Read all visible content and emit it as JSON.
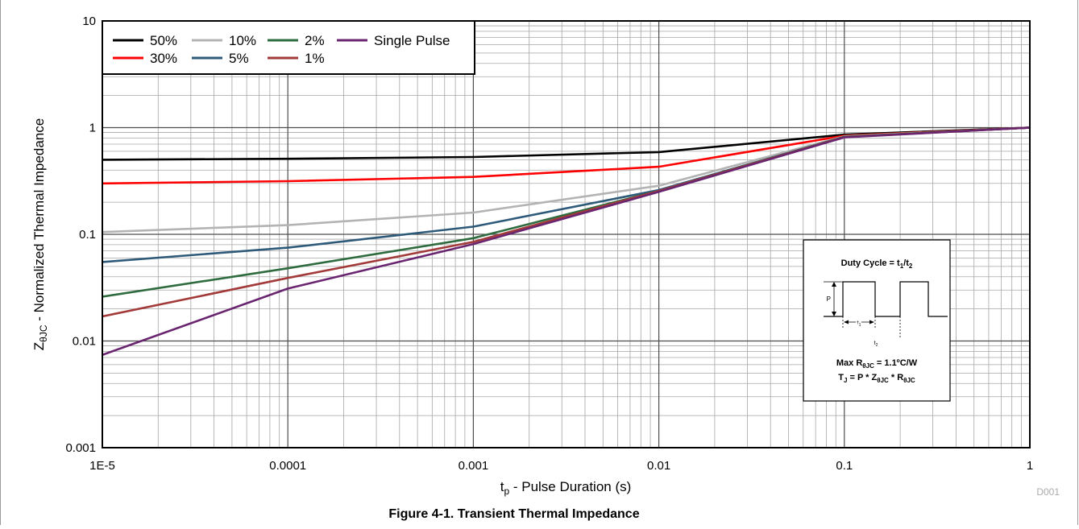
{
  "figure": {
    "caption": "Figure 4-1. Transient Thermal Impedance",
    "code": "D001"
  },
  "chart_data": {
    "type": "line",
    "x_scale": "log",
    "y_scale": "log",
    "xlim": [
      1e-05,
      1
    ],
    "ylim": [
      0.001,
      10
    ],
    "grid": true,
    "legend_position": "top-left",
    "xlabel_main": "t",
    "xlabel_sub": "p",
    "xlabel_rest": " - Pulse Duration (s)",
    "ylabel_main": "Z",
    "ylabel_sub": "θJC",
    "ylabel_rest": " - Normalized Thermal Impedance",
    "x_ticks": [
      {
        "value": 1e-05,
        "label": "1E-5"
      },
      {
        "value": 0.0001,
        "label": "0.0001"
      },
      {
        "value": 0.001,
        "label": "0.001"
      },
      {
        "value": 0.01,
        "label": "0.01"
      },
      {
        "value": 0.1,
        "label": "0.1"
      },
      {
        "value": 1,
        "label": "1"
      }
    ],
    "y_ticks": [
      {
        "value": 10,
        "label": "10"
      },
      {
        "value": 1,
        "label": "1"
      },
      {
        "value": 0.1,
        "label": "0.1"
      },
      {
        "value": 0.01,
        "label": "0.01"
      },
      {
        "value": 0.001,
        "label": "0.001"
      }
    ],
    "series": [
      {
        "name": "50%",
        "color": "#000000",
        "x": [
          1e-05,
          0.0001,
          0.001,
          0.01,
          0.1,
          1
        ],
        "y": [
          0.5,
          0.51,
          0.53,
          0.59,
          0.86,
          1.0
        ]
      },
      {
        "name": "30%",
        "color": "#ff0000",
        "x": [
          1e-05,
          0.0001,
          0.001,
          0.01,
          0.1,
          1
        ],
        "y": [
          0.3,
          0.315,
          0.345,
          0.43,
          0.84,
          1.0
        ]
      },
      {
        "name": "10%",
        "color": "#b3b3b3",
        "x": [
          1e-05,
          0.0001,
          0.001,
          0.01,
          0.1,
          1
        ],
        "y": [
          0.105,
          0.122,
          0.16,
          0.285,
          0.83,
          1.0
        ]
      },
      {
        "name": "5%",
        "color": "#2e5a7a",
        "x": [
          1e-05,
          0.0001,
          0.001,
          0.01,
          0.1,
          1
        ],
        "y": [
          0.055,
          0.075,
          0.118,
          0.26,
          0.82,
          1.0
        ]
      },
      {
        "name": "2%",
        "color": "#2e6b3e",
        "x": [
          1e-05,
          0.0001,
          0.001,
          0.01,
          0.1,
          1
        ],
        "y": [
          0.026,
          0.048,
          0.092,
          0.255,
          0.82,
          1.0
        ]
      },
      {
        "name": "1%",
        "color": "#a33a3a",
        "x": [
          1e-05,
          0.0001,
          0.001,
          0.01,
          0.1,
          1
        ],
        "y": [
          0.017,
          0.039,
          0.085,
          0.255,
          0.815,
          1.0
        ]
      },
      {
        "name": "Single Pulse",
        "color": "#6a2570",
        "x": [
          1e-05,
          0.0001,
          0.001,
          0.01,
          0.1,
          1
        ],
        "y": [
          0.0074,
          0.031,
          0.081,
          0.25,
          0.81,
          1.0
        ]
      }
    ],
    "legend_rows": [
      [
        "50%",
        "10%",
        "2%",
        "Single Pulse"
      ],
      [
        "30%",
        "5%",
        "1%"
      ]
    ]
  },
  "inset": {
    "title_main": "Duty Cycle = t",
    "title_sub1": "1",
    "title_mid": "/t",
    "title_sub2": "2",
    "p_label": "P",
    "t1_main": "t",
    "t1_sub": "1",
    "t2_main": "t",
    "t2_sub": "2",
    "line1_a": "Max R",
    "line1_sub": "θJC",
    "line1_b": " = 1.1ºC/W",
    "line2_a": "T",
    "line2_sub1": "J",
    "line2_b": " = P * Z",
    "line2_sub2": "θJC",
    "line2_c": " * R",
    "line2_sub3": "θJC"
  }
}
